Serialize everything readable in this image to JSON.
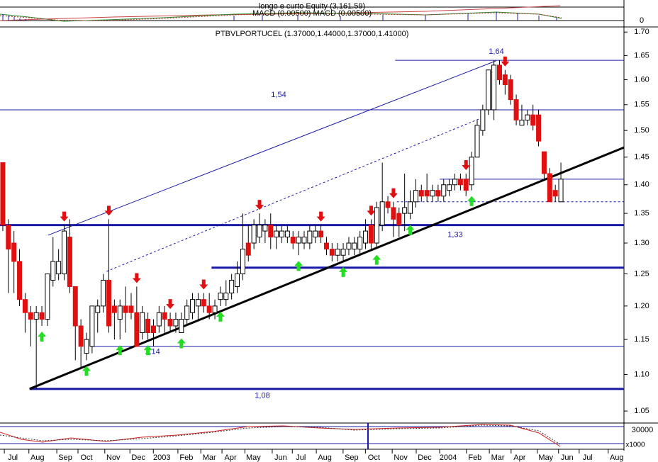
{
  "chart_data": {
    "type": "candlestick",
    "title": "PTBVLPORTUCEL (1.37000,1.44000,1.37000,1.41000)",
    "top_panel_title": "longo e curto Equity (3,161.59)",
    "top_panel_subtitle": "MACD (0.00500) MACD (0.00500)",
    "top_panel_tick": "0",
    "bottom_panel_tick": "30000",
    "bottom_panel_unit": "x1000",
    "log_scale": true,
    "up_color": "#ffffff",
    "down_color": "#e01010",
    "buy_color": "#22dd22",
    "sell_color": "#e01010",
    "x": [
      0,
      1,
      2,
      3,
      4,
      5,
      6,
      7,
      8,
      9,
      10,
      11,
      12,
      13,
      14,
      15,
      16,
      17,
      18,
      19,
      20,
      21,
      22,
      23,
      24,
      25,
      26,
      27,
      28,
      29,
      30,
      31,
      32,
      33,
      34,
      35,
      36,
      37,
      38,
      39,
      40,
      41,
      42,
      43,
      44,
      45,
      46,
      47,
      48,
      49,
      50,
      51,
      52,
      53,
      54,
      55,
      56,
      57,
      58,
      59,
      60,
      61,
      62,
      63,
      64,
      65,
      66,
      67,
      68,
      69,
      70,
      71,
      72,
      73,
      74,
      75,
      76,
      77,
      78,
      79,
      80,
      81,
      82,
      83,
      84,
      85,
      86,
      87,
      88,
      89,
      90,
      91,
      92,
      93,
      94,
      95,
      96,
      97,
      98,
      99,
      100
    ],
    "open": [
      1.44,
      1.33,
      1.3,
      1.27,
      1.21,
      1.19,
      1.18,
      1.19,
      1.18,
      1.24,
      1.25,
      1.25,
      1.31,
      1.23,
      1.17,
      1.13,
      1.14,
      1.19,
      1.2,
      1.24,
      1.2,
      1.18,
      1.2,
      1.2,
      1.19,
      1.16,
      1.18,
      1.17,
      1.17,
      1.19,
      1.18,
      1.17,
      1.16,
      1.18,
      1.19,
      1.2,
      1.21,
      1.2,
      1.19,
      1.21,
      1.21,
      1.22,
      1.23,
      1.25,
      1.3,
      1.3,
      1.31,
      1.32,
      1.33,
      1.31,
      1.31,
      1.31,
      1.31,
      1.3,
      1.3,
      1.3,
      1.31,
      1.32,
      1.3,
      1.29,
      1.28,
      1.28,
      1.29,
      1.29,
      1.29,
      1.3,
      1.33,
      1.3,
      1.33,
      1.37,
      1.36,
      1.35,
      1.35,
      1.35,
      1.37,
      1.39,
      1.39,
      1.38,
      1.39,
      1.38,
      1.39,
      1.4,
      1.41,
      1.41,
      1.4,
      1.45,
      1.5,
      1.54,
      1.54,
      1.63,
      1.61,
      1.6,
      1.56,
      1.51,
      1.52,
      1.53,
      1.53,
      1.46,
      1.42,
      1.39,
      1.37
    ],
    "high": [
      1.44,
      1.34,
      1.32,
      1.29,
      1.22,
      1.2,
      1.2,
      1.2,
      1.25,
      1.31,
      1.29,
      1.33,
      1.34,
      1.23,
      1.18,
      1.16,
      1.2,
      1.21,
      1.25,
      1.34,
      1.21,
      1.21,
      1.23,
      1.22,
      1.23,
      1.2,
      1.19,
      1.18,
      1.2,
      1.2,
      1.19,
      1.19,
      1.19,
      1.21,
      1.22,
      1.22,
      1.22,
      1.22,
      1.21,
      1.23,
      1.24,
      1.25,
      1.27,
      1.35,
      1.33,
      1.34,
      1.35,
      1.34,
      1.35,
      1.33,
      1.33,
      1.33,
      1.32,
      1.32,
      1.32,
      1.33,
      1.33,
      1.33,
      1.31,
      1.3,
      1.3,
      1.3,
      1.31,
      1.31,
      1.32,
      1.34,
      1.34,
      1.37,
      1.44,
      1.38,
      1.37,
      1.36,
      1.42,
      1.39,
      1.41,
      1.4,
      1.42,
      1.4,
      1.4,
      1.41,
      1.41,
      1.42,
      1.42,
      1.42,
      1.46,
      1.52,
      1.55,
      1.62,
      1.64,
      1.64,
      1.62,
      1.61,
      1.57,
      1.55,
      1.54,
      1.55,
      1.54,
      1.46,
      1.43,
      1.4,
      1.44
    ],
    "low": [
      1.32,
      1.22,
      1.22,
      1.2,
      1.16,
      1.14,
      1.08,
      1.17,
      1.17,
      1.23,
      1.24,
      1.24,
      1.22,
      1.12,
      1.11,
      1.12,
      1.13,
      1.16,
      1.19,
      1.16,
      1.15,
      1.15,
      1.16,
      1.18,
      1.14,
      1.15,
      1.15,
      1.14,
      1.16,
      1.16,
      1.16,
      1.16,
      1.16,
      1.17,
      1.18,
      1.18,
      1.19,
      1.18,
      1.18,
      1.2,
      1.2,
      1.21,
      1.22,
      1.24,
      1.27,
      1.29,
      1.3,
      1.3,
      1.29,
      1.29,
      1.3,
      1.3,
      1.29,
      1.28,
      1.29,
      1.29,
      1.3,
      1.3,
      1.28,
      1.27,
      1.27,
      1.27,
      1.28,
      1.28,
      1.28,
      1.29,
      1.29,
      1.29,
      1.32,
      1.35,
      1.31,
      1.31,
      1.32,
      1.34,
      1.36,
      1.37,
      1.37,
      1.37,
      1.37,
      1.37,
      1.38,
      1.39,
      1.39,
      1.38,
      1.39,
      1.45,
      1.49,
      1.53,
      1.52,
      1.59,
      1.57,
      1.55,
      1.51,
      1.51,
      1.51,
      1.5,
      1.47,
      1.41,
      1.37,
      1.37,
      1.37
    ],
    "close": [
      1.33,
      1.29,
      1.27,
      1.21,
      1.19,
      1.18,
      1.19,
      1.18,
      1.25,
      1.27,
      1.27,
      1.32,
      1.23,
      1.17,
      1.14,
      1.15,
      1.2,
      1.2,
      1.24,
      1.17,
      1.19,
      1.2,
      1.19,
      1.19,
      1.14,
      1.19,
      1.16,
      1.16,
      1.19,
      1.18,
      1.17,
      1.18,
      1.18,
      1.2,
      1.21,
      1.21,
      1.2,
      1.19,
      1.2,
      1.22,
      1.22,
      1.24,
      1.25,
      1.29,
      1.28,
      1.33,
      1.33,
      1.33,
      1.31,
      1.32,
      1.32,
      1.32,
      1.3,
      1.31,
      1.31,
      1.32,
      1.32,
      1.31,
      1.29,
      1.28,
      1.29,
      1.29,
      1.3,
      1.3,
      1.31,
      1.32,
      1.3,
      1.36,
      1.37,
      1.36,
      1.34,
      1.33,
      1.36,
      1.37,
      1.39,
      1.38,
      1.38,
      1.39,
      1.38,
      1.4,
      1.4,
      1.41,
      1.4,
      1.39,
      1.45,
      1.51,
      1.54,
      1.62,
      1.63,
      1.6,
      1.59,
      1.56,
      1.52,
      1.52,
      1.53,
      1.51,
      1.48,
      1.42,
      1.37,
      1.38,
      1.41
    ],
    "buy_signals": [
      7,
      15,
      21,
      26,
      32,
      39,
      53,
      61,
      67,
      73,
      84
    ],
    "sell_signals": [
      11,
      19,
      24,
      30,
      36,
      46,
      57,
      66,
      70,
      83,
      90
    ],
    "xlim": [
      -0.5,
      111.3
    ],
    "ylim": [
      1.036,
      1.708
    ],
    "xticks": [
      {
        "value": 1.8,
        "label": "Jul"
      },
      {
        "value": 6.2,
        "label": "Aug"
      },
      {
        "value": 11.2,
        "label": "Sep"
      },
      {
        "value": 15,
        "label": "Oct"
      },
      {
        "value": 19.8,
        "label": "Nov"
      },
      {
        "value": 24.3,
        "label": "Dec"
      },
      {
        "value": 28.5,
        "label": "2003"
      },
      {
        "value": 32.9,
        "label": "Feb"
      },
      {
        "value": 37,
        "label": "Mar"
      },
      {
        "value": 40.8,
        "label": "Apr"
      },
      {
        "value": 44.9,
        "label": "May"
      },
      {
        "value": 49.8,
        "label": "Jun"
      },
      {
        "value": 53.4,
        "label": "Jul"
      },
      {
        "value": 57.7,
        "label": "Aug"
      },
      {
        "value": 62.5,
        "label": "Sep"
      },
      {
        "value": 66.5,
        "label": "Oct"
      },
      {
        "value": 71.3,
        "label": "Nov"
      },
      {
        "value": 75.6,
        "label": "Dec"
      },
      {
        "value": 79.8,
        "label": "2004"
      },
      {
        "value": 84.6,
        "label": "Feb"
      },
      {
        "value": 88.7,
        "label": "Mar"
      },
      {
        "value": 92.6,
        "label": "Apr"
      },
      {
        "value": 97.3,
        "label": "May"
      },
      {
        "value": 101.1,
        "label": "Jun"
      },
      {
        "value": 104.8,
        "label": "Jul"
      },
      {
        "value": 110,
        "label": "Aug"
      }
    ],
    "yticks": [
      {
        "value": 1.05,
        "label": "1.05"
      },
      {
        "value": 1.1,
        "label": "1.10"
      },
      {
        "value": 1.15,
        "label": "1.15"
      },
      {
        "value": 1.2,
        "label": "1.20"
      },
      {
        "value": 1.25,
        "label": "1.25"
      },
      {
        "value": 1.3,
        "label": "1.30"
      },
      {
        "value": 1.35,
        "label": "1.35"
      },
      {
        "value": 1.4,
        "label": "1.40"
      },
      {
        "value": 1.45,
        "label": "1.45"
      },
      {
        "value": 1.5,
        "label": "1.50"
      },
      {
        "value": 1.55,
        "label": "1.55"
      },
      {
        "value": 1.6,
        "label": "1.60"
      },
      {
        "value": 1.65,
        "label": "1.65"
      },
      {
        "value": 1.7,
        "label": "1.70"
      }
    ],
    "levels": [
      {
        "value": 1.64,
        "label": "1,64",
        "from": 70.3,
        "width": 1
      },
      {
        "value": 1.54,
        "label": "1,54",
        "from": -0.5,
        "width": 1
      },
      {
        "value": 1.41,
        "from": 78.3,
        "width": 1
      },
      {
        "value": 1.37,
        "from": 70.6,
        "width": 1,
        "dashed": true
      },
      {
        "value": 1.33,
        "label": "1,33",
        "from": -0.5,
        "width": 3
      },
      {
        "value": 1.26,
        "from": 37.4,
        "width": 3
      },
      {
        "value": 1.14,
        "label": "1,14",
        "from": 15.8,
        "width": 1
      },
      {
        "value": 1.08,
        "label": "1,08",
        "from": 4.8,
        "width": 3
      }
    ],
    "trendlines": [
      {
        "x": [
          4.8,
          111.3
        ],
        "y": [
          1.08,
          1.468
        ],
        "color": "#000000",
        "width": 3
      },
      {
        "x": [
          8.1,
          88.4
        ],
        "y": [
          1.313,
          1.639
        ],
        "color": "#1a1aa8",
        "width": 1
      },
      {
        "x": [
          18.6,
          85.3
        ],
        "y": [
          1.254,
          1.522
        ],
        "color": "#1a1aa8",
        "width": 1,
        "dashed": true
      }
    ]
  }
}
